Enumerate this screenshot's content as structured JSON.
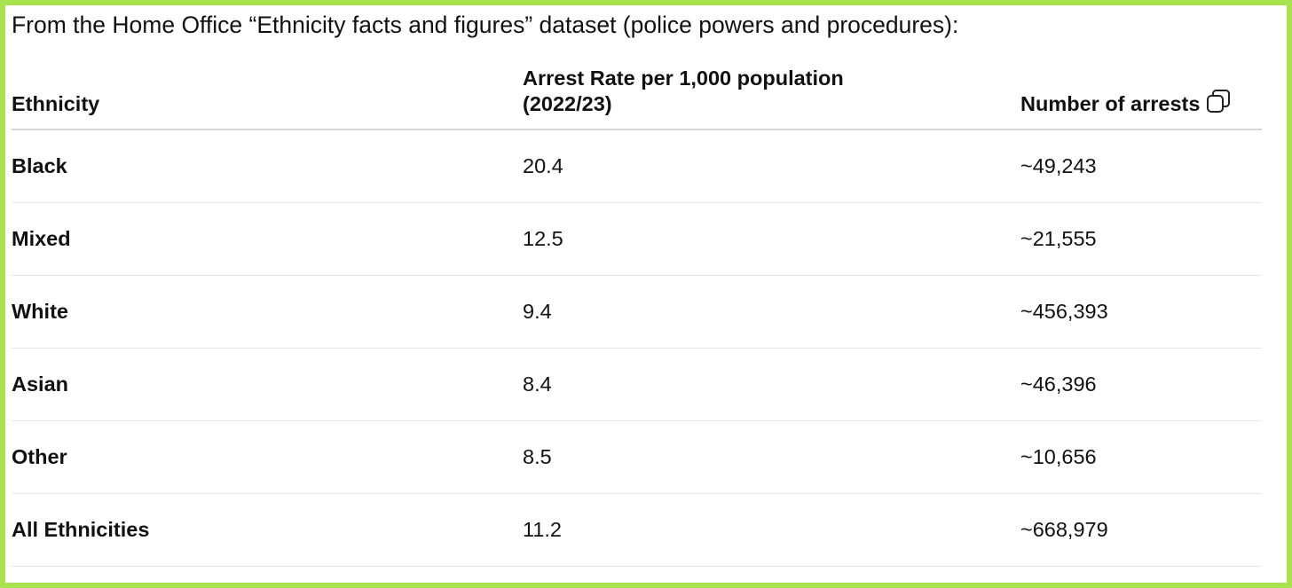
{
  "intro": "From the Home Office “Ethnicity facts and figures” dataset (police powers and procedures):",
  "table": {
    "headers": {
      "ethnicity": "Ethnicity",
      "rate": "Arrest Rate per 1,000 population (2022/23)",
      "arrests": "Number of arrests"
    },
    "rows": [
      {
        "ethnicity": "Black",
        "rate": "20.4",
        "arrests": "~49,243"
      },
      {
        "ethnicity": "Mixed",
        "rate": "12.5",
        "arrests": "~21,555"
      },
      {
        "ethnicity": "White",
        "rate": "9.4",
        "arrests": "~456,393"
      },
      {
        "ethnicity": "Asian",
        "rate": "8.4",
        "arrests": "~46,396"
      },
      {
        "ethnicity": "Other",
        "rate": "8.5",
        "arrests": "~10,656"
      },
      {
        "ethnicity": "All Ethnicities",
        "rate": "11.2",
        "arrests": "~668,979"
      }
    ]
  },
  "icons": {
    "copy": "copy-icon"
  },
  "colors": {
    "frame_border": "#a8e24c",
    "text": "#111111",
    "header_rule": "#d6d6d6",
    "row_rule": "#e6e6e6"
  }
}
